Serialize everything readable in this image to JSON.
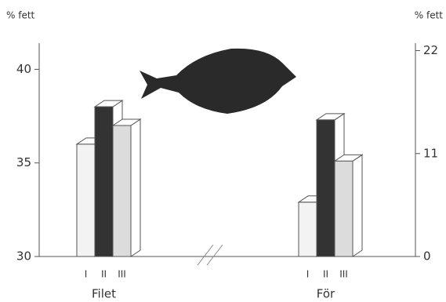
{
  "chart_data": {
    "type": "bar",
    "ylabel": "% fett",
    "y2label": "% fett",
    "categories": [
      "I",
      "II",
      "III"
    ],
    "colors": [
      "#f3f3f3",
      "#333333",
      "#dcdcdc"
    ],
    "series": [
      {
        "name": "Filet",
        "values": [
          36,
          38,
          37
        ],
        "axis": "y"
      },
      {
        "name": "För",
        "values": [
          5.8,
          14.6,
          10.2
        ],
        "axis": "y2"
      }
    ],
    "ylim": [
      30,
      41.4
    ],
    "yticks": [
      30,
      35,
      40
    ],
    "y2lim": [
      0,
      22.8
    ],
    "y2ticks": [
      0,
      11,
      22
    ]
  }
}
